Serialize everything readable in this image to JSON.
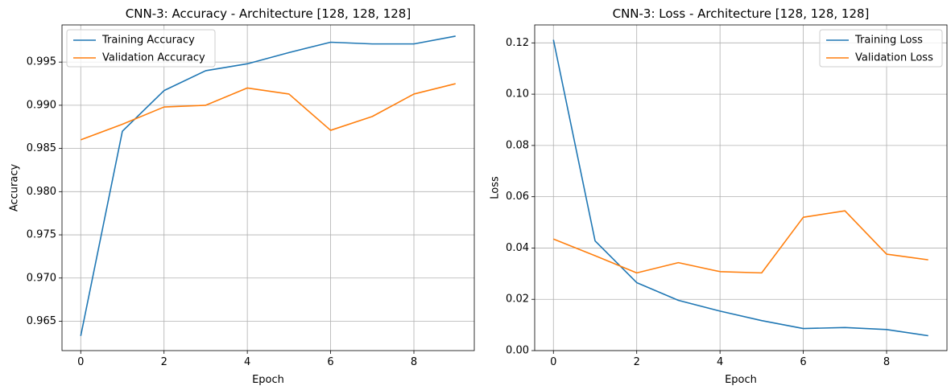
{
  "chart_data": [
    {
      "type": "line",
      "title": "CNN-3: Accuracy - Architecture [128, 128, 128]",
      "xlabel": "Epoch",
      "ylabel": "Accuracy",
      "x": [
        0,
        1,
        2,
        3,
        4,
        5,
        6,
        7,
        8,
        9
      ],
      "xlim": [
        -0.45,
        9.45
      ],
      "ylim": [
        0.9616,
        0.9993
      ],
      "xticks": [
        0,
        2,
        4,
        6,
        8
      ],
      "xtick_labels": [
        "0",
        "2",
        "4",
        "6",
        "8"
      ],
      "yticks": [
        0.965,
        0.97,
        0.975,
        0.98,
        0.985,
        0.99,
        0.995
      ],
      "ytick_labels": [
        "0.965",
        "0.970",
        "0.975",
        "0.980",
        "0.985",
        "0.990",
        "0.995"
      ],
      "grid": true,
      "legend_position": "top-left",
      "series": [
        {
          "name": "Training Accuracy",
          "color": "#1f77b4",
          "values": [
            0.9633,
            0.987,
            0.9917,
            0.994,
            0.9948,
            0.9961,
            0.9973,
            0.9971,
            0.9971,
            0.998
          ]
        },
        {
          "name": "Validation Accuracy",
          "color": "#ff7f0e",
          "values": [
            0.986,
            0.9878,
            0.9898,
            0.99,
            0.992,
            0.9913,
            0.9871,
            0.9887,
            0.9913,
            0.9925
          ]
        }
      ]
    },
    {
      "type": "line",
      "title": "CNN-3: Loss - Architecture [128, 128, 128]",
      "xlabel": "Epoch",
      "ylabel": "Loss",
      "x": [
        0,
        1,
        2,
        3,
        4,
        5,
        6,
        7,
        8,
        9
      ],
      "xlim": [
        -0.45,
        9.45
      ],
      "ylim": [
        0,
        0.127
      ],
      "xticks": [
        0,
        2,
        4,
        6,
        8
      ],
      "xtick_labels": [
        "0",
        "2",
        "4",
        "6",
        "8"
      ],
      "yticks": [
        0,
        0.02,
        0.04,
        0.06,
        0.08,
        0.1,
        0.12
      ],
      "ytick_labels": [
        "0.00",
        "0.02",
        "0.04",
        "0.06",
        "0.08",
        "0.10",
        "0.12"
      ],
      "grid": true,
      "legend_position": "top-right",
      "series": [
        {
          "name": "Training Loss",
          "color": "#1f77b4",
          "values": [
            0.1212,
            0.0428,
            0.0265,
            0.0196,
            0.0154,
            0.0117,
            0.0086,
            0.009,
            0.0082,
            0.0058
          ]
        },
        {
          "name": "Validation Loss",
          "color": "#ff7f0e",
          "values": [
            0.0435,
            0.037,
            0.0303,
            0.0343,
            0.0308,
            0.0303,
            0.052,
            0.0545,
            0.0376,
            0.0354
          ]
        }
      ]
    }
  ]
}
